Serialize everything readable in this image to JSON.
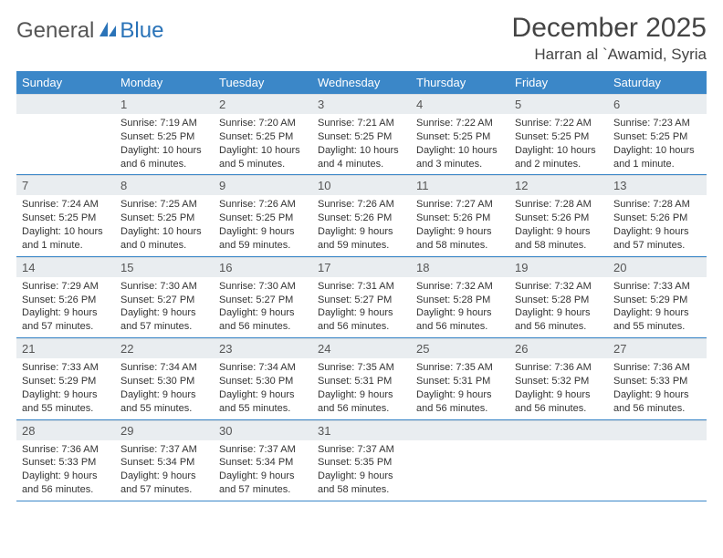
{
  "logo": {
    "text1": "General",
    "text2": "Blue"
  },
  "title": "December 2025",
  "location": "Harran al `Awamid, Syria",
  "colors": {
    "header_bg": "#3b87c8",
    "header_text": "#ffffff",
    "daynum_bg": "#e9edf0",
    "border": "#3b87c8",
    "logo_gray": "#555555",
    "logo_blue": "#2a73b8"
  },
  "weekdays": [
    "Sunday",
    "Monday",
    "Tuesday",
    "Wednesday",
    "Thursday",
    "Friday",
    "Saturday"
  ],
  "weeks": [
    [
      {
        "n": "",
        "lines": []
      },
      {
        "n": "1",
        "lines": [
          "Sunrise: 7:19 AM",
          "Sunset: 5:25 PM",
          "Daylight: 10 hours",
          "and 6 minutes."
        ]
      },
      {
        "n": "2",
        "lines": [
          "Sunrise: 7:20 AM",
          "Sunset: 5:25 PM",
          "Daylight: 10 hours",
          "and 5 minutes."
        ]
      },
      {
        "n": "3",
        "lines": [
          "Sunrise: 7:21 AM",
          "Sunset: 5:25 PM",
          "Daylight: 10 hours",
          "and 4 minutes."
        ]
      },
      {
        "n": "4",
        "lines": [
          "Sunrise: 7:22 AM",
          "Sunset: 5:25 PM",
          "Daylight: 10 hours",
          "and 3 minutes."
        ]
      },
      {
        "n": "5",
        "lines": [
          "Sunrise: 7:22 AM",
          "Sunset: 5:25 PM",
          "Daylight: 10 hours",
          "and 2 minutes."
        ]
      },
      {
        "n": "6",
        "lines": [
          "Sunrise: 7:23 AM",
          "Sunset: 5:25 PM",
          "Daylight: 10 hours",
          "and 1 minute."
        ]
      }
    ],
    [
      {
        "n": "7",
        "lines": [
          "Sunrise: 7:24 AM",
          "Sunset: 5:25 PM",
          "Daylight: 10 hours",
          "and 1 minute."
        ]
      },
      {
        "n": "8",
        "lines": [
          "Sunrise: 7:25 AM",
          "Sunset: 5:25 PM",
          "Daylight: 10 hours",
          "and 0 minutes."
        ]
      },
      {
        "n": "9",
        "lines": [
          "Sunrise: 7:26 AM",
          "Sunset: 5:25 PM",
          "Daylight: 9 hours",
          "and 59 minutes."
        ]
      },
      {
        "n": "10",
        "lines": [
          "Sunrise: 7:26 AM",
          "Sunset: 5:26 PM",
          "Daylight: 9 hours",
          "and 59 minutes."
        ]
      },
      {
        "n": "11",
        "lines": [
          "Sunrise: 7:27 AM",
          "Sunset: 5:26 PM",
          "Daylight: 9 hours",
          "and 58 minutes."
        ]
      },
      {
        "n": "12",
        "lines": [
          "Sunrise: 7:28 AM",
          "Sunset: 5:26 PM",
          "Daylight: 9 hours",
          "and 58 minutes."
        ]
      },
      {
        "n": "13",
        "lines": [
          "Sunrise: 7:28 AM",
          "Sunset: 5:26 PM",
          "Daylight: 9 hours",
          "and 57 minutes."
        ]
      }
    ],
    [
      {
        "n": "14",
        "lines": [
          "Sunrise: 7:29 AM",
          "Sunset: 5:26 PM",
          "Daylight: 9 hours",
          "and 57 minutes."
        ]
      },
      {
        "n": "15",
        "lines": [
          "Sunrise: 7:30 AM",
          "Sunset: 5:27 PM",
          "Daylight: 9 hours",
          "and 57 minutes."
        ]
      },
      {
        "n": "16",
        "lines": [
          "Sunrise: 7:30 AM",
          "Sunset: 5:27 PM",
          "Daylight: 9 hours",
          "and 56 minutes."
        ]
      },
      {
        "n": "17",
        "lines": [
          "Sunrise: 7:31 AM",
          "Sunset: 5:27 PM",
          "Daylight: 9 hours",
          "and 56 minutes."
        ]
      },
      {
        "n": "18",
        "lines": [
          "Sunrise: 7:32 AM",
          "Sunset: 5:28 PM",
          "Daylight: 9 hours",
          "and 56 minutes."
        ]
      },
      {
        "n": "19",
        "lines": [
          "Sunrise: 7:32 AM",
          "Sunset: 5:28 PM",
          "Daylight: 9 hours",
          "and 56 minutes."
        ]
      },
      {
        "n": "20",
        "lines": [
          "Sunrise: 7:33 AM",
          "Sunset: 5:29 PM",
          "Daylight: 9 hours",
          "and 55 minutes."
        ]
      }
    ],
    [
      {
        "n": "21",
        "lines": [
          "Sunrise: 7:33 AM",
          "Sunset: 5:29 PM",
          "Daylight: 9 hours",
          "and 55 minutes."
        ]
      },
      {
        "n": "22",
        "lines": [
          "Sunrise: 7:34 AM",
          "Sunset: 5:30 PM",
          "Daylight: 9 hours",
          "and 55 minutes."
        ]
      },
      {
        "n": "23",
        "lines": [
          "Sunrise: 7:34 AM",
          "Sunset: 5:30 PM",
          "Daylight: 9 hours",
          "and 55 minutes."
        ]
      },
      {
        "n": "24",
        "lines": [
          "Sunrise: 7:35 AM",
          "Sunset: 5:31 PM",
          "Daylight: 9 hours",
          "and 56 minutes."
        ]
      },
      {
        "n": "25",
        "lines": [
          "Sunrise: 7:35 AM",
          "Sunset: 5:31 PM",
          "Daylight: 9 hours",
          "and 56 minutes."
        ]
      },
      {
        "n": "26",
        "lines": [
          "Sunrise: 7:36 AM",
          "Sunset: 5:32 PM",
          "Daylight: 9 hours",
          "and 56 minutes."
        ]
      },
      {
        "n": "27",
        "lines": [
          "Sunrise: 7:36 AM",
          "Sunset: 5:33 PM",
          "Daylight: 9 hours",
          "and 56 minutes."
        ]
      }
    ],
    [
      {
        "n": "28",
        "lines": [
          "Sunrise: 7:36 AM",
          "Sunset: 5:33 PM",
          "Daylight: 9 hours",
          "and 56 minutes."
        ]
      },
      {
        "n": "29",
        "lines": [
          "Sunrise: 7:37 AM",
          "Sunset: 5:34 PM",
          "Daylight: 9 hours",
          "and 57 minutes."
        ]
      },
      {
        "n": "30",
        "lines": [
          "Sunrise: 7:37 AM",
          "Sunset: 5:34 PM",
          "Daylight: 9 hours",
          "and 57 minutes."
        ]
      },
      {
        "n": "31",
        "lines": [
          "Sunrise: 7:37 AM",
          "Sunset: 5:35 PM",
          "Daylight: 9 hours",
          "and 58 minutes."
        ]
      },
      {
        "n": "",
        "lines": []
      },
      {
        "n": "",
        "lines": []
      },
      {
        "n": "",
        "lines": []
      }
    ]
  ]
}
